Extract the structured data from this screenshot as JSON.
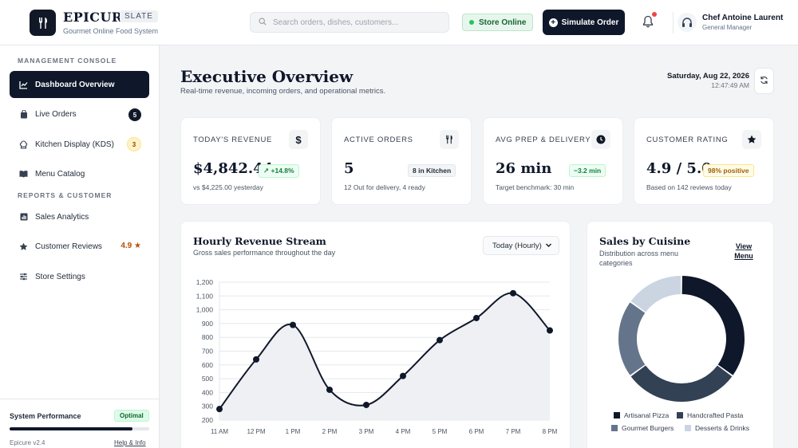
{
  "brand": {
    "name": "EPICURE",
    "tag": "SLATE",
    "subtitle": "Gourmet Online Food System"
  },
  "header": {
    "search_placeholder": "Search orders, dishes, customers...",
    "store_status": "Store Online",
    "simulate_label": "Simulate Order",
    "user_name": "Chef Antoine Laurent",
    "user_role": "General Manager"
  },
  "sidebar": {
    "section_management": "MANAGEMENT CONSOLE",
    "section_reports": "REPORTS & CUSTOMER",
    "items": [
      {
        "label": "Dashboard Overview",
        "icon": "chart-line-icon"
      },
      {
        "label": "Live Orders",
        "icon": "shopping-bag-icon",
        "badge": "5"
      },
      {
        "label": "Kitchen Display (KDS)",
        "icon": "chef-hat-icon",
        "badge": "3"
      },
      {
        "label": "Menu Catalog",
        "icon": "book-open-icon"
      },
      {
        "label": "Sales Analytics",
        "icon": "bar-chart-icon"
      },
      {
        "label": "Customer Reviews",
        "icon": "star-icon",
        "rating": "4.9"
      },
      {
        "label": "Store Settings",
        "icon": "sliders-icon"
      }
    ],
    "footer": {
      "perf_label": "System Performance",
      "perf_status": "Optimal",
      "perf_level": 0.88,
      "version": "Epicure v2.4",
      "help": "Help & Info"
    }
  },
  "main": {
    "title": "Executive Overview",
    "subtitle": "Real-time revenue, incoming orders, and operational metrics.",
    "date": "Saturday, Aug 22, 2026",
    "time": "12:47:49 AM"
  },
  "kpis": [
    {
      "label": "TODAY'S REVENUE",
      "value": "$4,842.44",
      "chip": "+14.8%",
      "note": "vs $4,225.00 yesterday",
      "icon": "dollar-icon"
    },
    {
      "label": "ACTIVE ORDERS",
      "value": "5",
      "chip": "8 in Kitchen",
      "note": "12 Out for delivery, 4 ready",
      "icon": "utensils-icon"
    },
    {
      "label": "AVG PREP & DELIVERY",
      "value": "26 min",
      "chip": "−3.2 min",
      "note": "Target benchmark: 30 min",
      "icon": "clock-icon"
    },
    {
      "label": "CUSTOMER RATING",
      "value": "4.9 / 5.0",
      "chip": "98% positive",
      "note": "Based on 142 reviews today",
      "icon": "star-icon"
    }
  ],
  "revenue_card": {
    "title": "Hourly Revenue Stream",
    "subtitle": "Gross sales performance throughout the day",
    "range": "Today (Hourly)"
  },
  "cuisine_card": {
    "title": "Sales by Cuisine",
    "subtitle": "Distribution across menu categories",
    "view_menu": "View Menu"
  },
  "chart_data": [
    {
      "type": "area",
      "categories": [
        "11 AM",
        "12 PM",
        "1 PM",
        "2 PM",
        "3 PM",
        "4 PM",
        "5 PM",
        "6 PM",
        "7 PM",
        "8 PM"
      ],
      "values": [
        280,
        640,
        890,
        420,
        310,
        520,
        780,
        940,
        1120,
        850
      ],
      "yticks": [
        200,
        300,
        400,
        500,
        600,
        700,
        800,
        900,
        "1,000",
        "1,100",
        "1,200"
      ],
      "ylim": [
        200,
        1200
      ],
      "grid": true,
      "line_color": "#0f172a",
      "fill_color": "#eef0f3"
    },
    {
      "type": "pie",
      "donut": true,
      "categories": [
        "Artisanal Pizza",
        "Handcrafted Pasta",
        "Gourmet Burgers",
        "Desserts & Drinks"
      ],
      "values": [
        35,
        30,
        20,
        15
      ],
      "colors": [
        "#0f172a",
        "#334155",
        "#64748b",
        "#cbd5e1"
      ],
      "legend": "bottom"
    }
  ]
}
